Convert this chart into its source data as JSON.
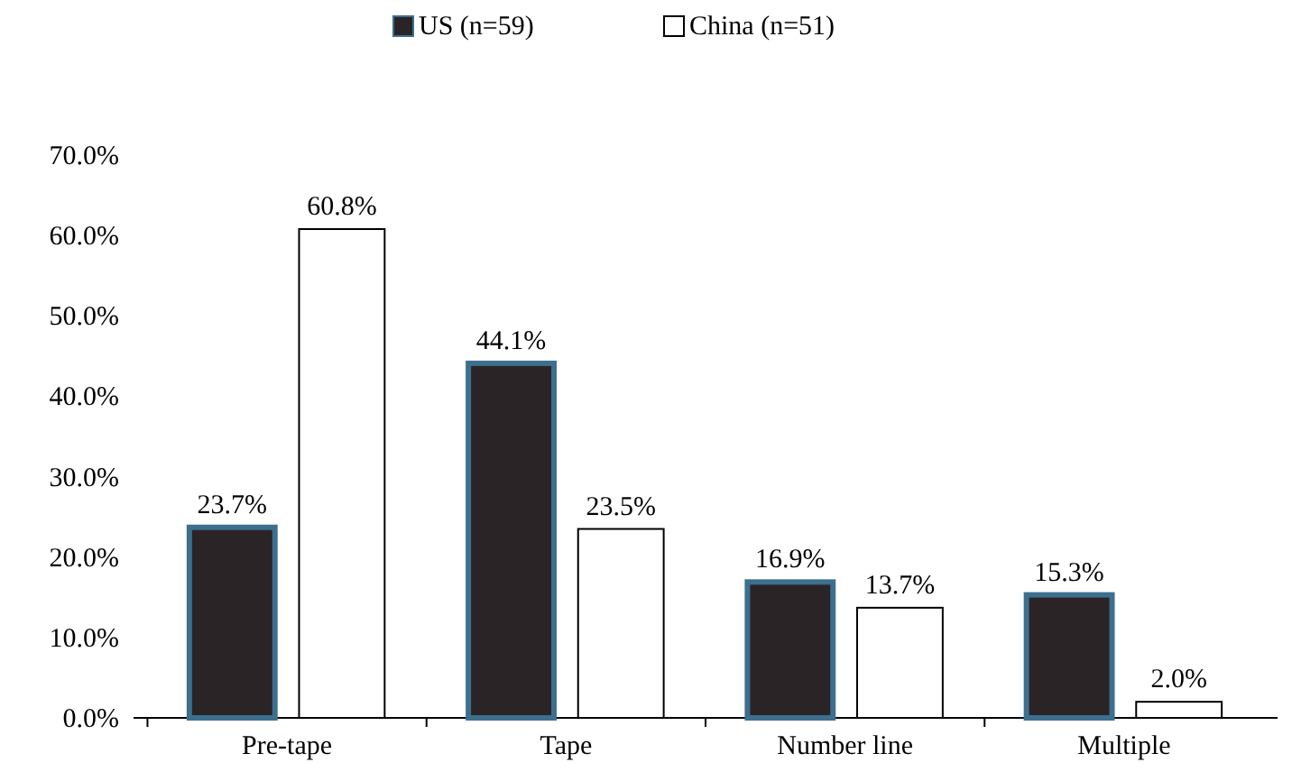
{
  "chart_data": {
    "type": "bar",
    "categories": [
      "Pre-tape",
      "Tape",
      "Number line",
      "Multiple"
    ],
    "series": [
      {
        "name": "US (n=59)",
        "color": "#2a2426",
        "values": [
          23.7,
          44.1,
          16.9,
          15.3
        ],
        "value_labels": [
          "23.7%",
          "44.1%",
          "16.9%",
          "15.3%"
        ]
      },
      {
        "name": "China (n=51)",
        "color": "#ffffff",
        "values": [
          60.8,
          23.5,
          13.7,
          2.0
        ],
        "value_labels": [
          "60.8%",
          "23.5%",
          "13.7%",
          "2.0%"
        ]
      }
    ],
    "ylim": [
      0,
      70
    ],
    "yticks": [
      {
        "value": 0,
        "label": "0.0%"
      },
      {
        "value": 10,
        "label": "10.0%"
      },
      {
        "value": 20,
        "label": "20.0%"
      },
      {
        "value": 30,
        "label": "30.0%"
      },
      {
        "value": 40,
        "label": "40.0%"
      },
      {
        "value": 50,
        "label": "50.0%"
      },
      {
        "value": 60,
        "label": "60.0%"
      },
      {
        "value": 70,
        "label": "70.0%"
      }
    ],
    "legend": "top",
    "grid": false
  }
}
